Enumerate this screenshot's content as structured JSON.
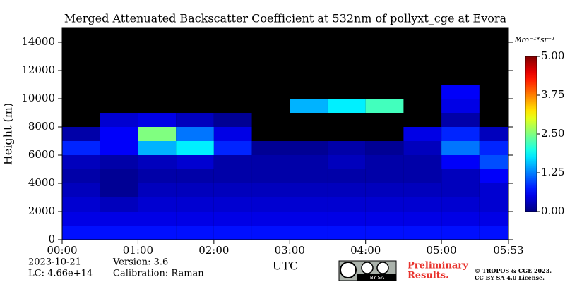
{
  "chart_data": {
    "type": "heatmap",
    "title": "Merged Attenuated Backscatter Coefficient at 532nm of pollyxt_cge at Evora",
    "y_label": "Height (m)",
    "x_label": "UTC",
    "colorbar_label": "Mm⁻¹*sr⁻¹",
    "colormap": "jet",
    "background": "#000000",
    "xlim": [
      0,
      353
    ],
    "ylim": [
      0,
      15000
    ],
    "xticks": [
      {
        "value": 0,
        "label": "00:00"
      },
      {
        "value": 60,
        "label": "01:00"
      },
      {
        "value": 120,
        "label": "02:00"
      },
      {
        "value": 180,
        "label": "03:00"
      },
      {
        "value": 240,
        "label": "04:00"
      },
      {
        "value": 300,
        "label": "05:00"
      },
      {
        "value": 353,
        "label": "05:53"
      }
    ],
    "yticks": [
      0,
      2000,
      4000,
      6000,
      8000,
      10000,
      12000,
      14000
    ],
    "clim": [
      0,
      5
    ],
    "cticks": [
      {
        "value": 0,
        "label": "0.00"
      },
      {
        "value": 1.25,
        "label": "1.25"
      },
      {
        "value": 2.5,
        "label": "2.50"
      },
      {
        "value": 3.75,
        "label": "3.75"
      },
      {
        "value": 5,
        "label": "5.00"
      }
    ],
    "x_edges": [
      0,
      30,
      60,
      90,
      120,
      150,
      180,
      210,
      240,
      270,
      300,
      330,
      353
    ],
    "y_edges": [
      0,
      1000,
      2000,
      3000,
      4000,
      5000,
      6000,
      7000,
      8000,
      9000,
      10000,
      11000
    ],
    "z": [
      [
        0.7,
        0.7,
        0.7,
        0.7,
        0.7,
        0.7,
        0.7,
        0.7,
        0.7,
        0.7,
        0.7,
        0.7
      ],
      [
        0.5,
        0.5,
        0.5,
        0.5,
        0.5,
        0.5,
        0.5,
        0.5,
        0.5,
        0.5,
        0.5,
        0.5
      ],
      [
        0.4,
        0.3,
        0.4,
        0.4,
        0.4,
        0.4,
        0.4,
        0.4,
        0.4,
        0.4,
        0.4,
        0.4
      ],
      [
        0.3,
        0.1,
        0.3,
        0.3,
        0.3,
        0.3,
        0.3,
        0.3,
        0.3,
        0.3,
        0.3,
        0.4
      ],
      [
        0.2,
        0.1,
        0.2,
        0.2,
        0.2,
        0.2,
        0.2,
        0.2,
        0.2,
        0.2,
        0.3,
        0.6
      ],
      [
        0.3,
        0.2,
        0.3,
        0.4,
        0.2,
        0.2,
        0.2,
        0.3,
        0.2,
        0.2,
        0.6,
        1.0
      ],
      [
        0.8,
        0.6,
        1.5,
        1.8,
        0.8,
        0.1,
        0.1,
        0.2,
        0.1,
        0.3,
        1.2,
        0.8
      ],
      [
        0.2,
        0.6,
        2.5,
        1.2,
        0.5,
        null,
        null,
        null,
        null,
        0.5,
        0.8,
        0.3
      ],
      [
        null,
        0.4,
        0.5,
        0.3,
        0.1,
        null,
        null,
        null,
        null,
        null,
        0.2,
        null
      ],
      [
        null,
        null,
        null,
        null,
        null,
        null,
        1.5,
        1.8,
        2.2,
        null,
        0.5,
        null
      ],
      [
        null,
        null,
        null,
        null,
        null,
        null,
        null,
        null,
        null,
        null,
        0.6,
        null
      ]
    ],
    "annotations": {
      "date": "2023-10-21",
      "version": "Version: 3.6",
      "lc": "LC: 4.66e+14",
      "calibration": "Calibration: Raman",
      "preliminary_1": "Preliminary",
      "preliminary_2": "Results.",
      "copyright_1": "© TROPOS & CGE 2023.",
      "copyright_2": "CC BY SA 4.0 License.",
      "cc_badge": "BY  SA"
    }
  }
}
